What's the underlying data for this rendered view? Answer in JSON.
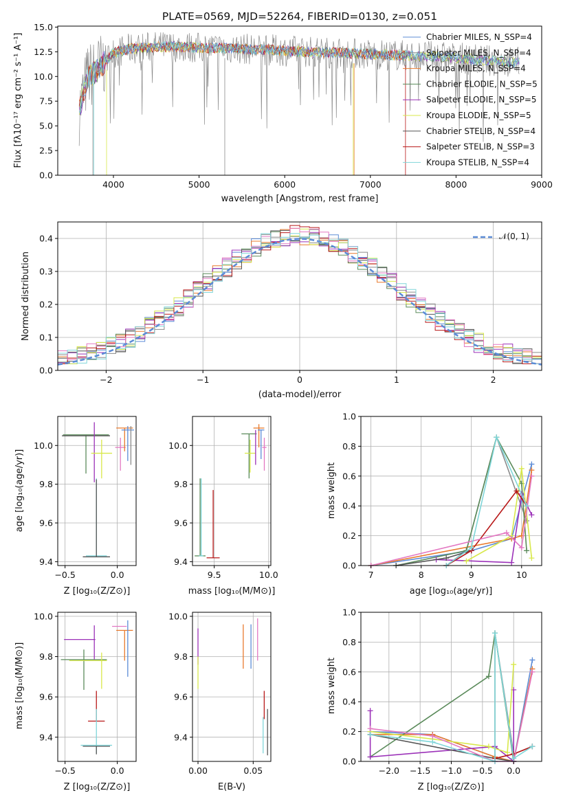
{
  "chart_data": [
    {
      "type": "line",
      "title": "PLATE=0569, MJD=52264, FIBERID=0130, z=0.051",
      "xlabel": "wavelength [Angstrom, rest frame]",
      "ylabel": "Flux [fλ10⁻¹⁷ erg cm⁻² s⁻¹ A⁻¹]",
      "xlim": [
        3350,
        9000
      ],
      "ylim": [
        0,
        15.1
      ],
      "xticks": [
        "4000",
        "5000",
        "6000",
        "7000",
        "8000",
        "9000"
      ],
      "yticks": [
        "0.0",
        "2.5",
        "5.0",
        "7.5",
        "10.0",
        "12.5",
        "15.0"
      ],
      "legend_position": "top-right",
      "series": [
        {
          "name": "Chabrier MILES, N_SSP=4",
          "color": "#5b8bd6"
        },
        {
          "name": "Salpeter MILES, N_SSP=4",
          "color": "#8a8a8a"
        },
        {
          "name": "Kroupa MILES, N_SSP=4",
          "color": "#e8792b"
        },
        {
          "name": "Chabrier ELODIE, N_SSP=5",
          "color": "#5a8a5a"
        },
        {
          "name": "Salpeter ELODIE, N_SSP=5",
          "color": "#9b30b8"
        },
        {
          "name": "Kroupa ELODIE, N_SSP=5",
          "color": "#d8e84a"
        },
        {
          "name": "Chabrier STELIB, N_SSP=4",
          "color": "#555555"
        },
        {
          "name": "Salpeter STELIB, N_SSP=3",
          "color": "#b81818"
        },
        {
          "name": "Kroupa STELIB, N_SSP=4",
          "color": "#7fd6d9"
        }
      ],
      "continuum": {
        "x": [
          3600,
          3700,
          3800,
          3900,
          4000,
          4200,
          4500,
          4800,
          5000,
          5200,
          5500,
          5800,
          6000,
          6300,
          6600,
          6900,
          7200,
          7500,
          7800,
          8100,
          8400,
          8750
        ],
        "y": [
          6.5,
          10.0,
          10.5,
          11.5,
          12.4,
          12.8,
          13.0,
          13.0,
          12.9,
          12.9,
          12.8,
          12.7,
          12.6,
          12.5,
          12.4,
          12.3,
          12.2,
          12.1,
          12.0,
          11.8,
          11.6,
          11.4
        ]
      }
    },
    {
      "type": "line",
      "xlabel": "(data-model)/error",
      "ylabel": "Normed distribution",
      "xlim": [
        -2.5,
        2.5
      ],
      "ylim": [
        0,
        0.45
      ],
      "xticks": [
        "−2",
        "−1",
        "0",
        "1",
        "2"
      ],
      "yticks": [
        "0.0",
        "0.1",
        "0.2",
        "0.3",
        "0.4"
      ],
      "legend": "𝒩(0, 1)",
      "gaussian": {
        "mu": 0,
        "sigma": 1,
        "color": "#5b8bd6"
      }
    },
    {
      "type": "scatter",
      "xlabel": "Z [log₁₀(Z/Z⊙)]",
      "ylabel": "age  [log₁₀(age/yr)]",
      "xlim": [
        -0.57,
        0.18
      ],
      "ylim": [
        9.38,
        10.15
      ],
      "xticks": [
        "−0.5",
        "0.0"
      ],
      "yticks": [
        "9.4",
        "9.6",
        "9.8",
        "10.0"
      ],
      "points": [
        {
          "x": -0.3,
          "y": 10.055,
          "xerr": 0.22,
          "yerr": [
            0.2,
            0.0
          ],
          "color": "#5a8a5a"
        },
        {
          "x": -0.3,
          "y": 10.05,
          "xerr": 0.23,
          "yerr": [
            0.0,
            0.0
          ],
          "color": "#555555"
        },
        {
          "x": -0.22,
          "y": 10.06,
          "xerr": 0.0,
          "yerr": [
            0.25,
            0.06
          ],
          "color": "#9b30b8"
        },
        {
          "x": -0.15,
          "y": 9.96,
          "xerr": 0.1,
          "yerr": [
            0.13,
            0.07
          ],
          "color": "#d8e84a"
        },
        {
          "x": 0.03,
          "y": 9.99,
          "xerr": 0.05,
          "yerr": [
            0.12,
            0.05
          ],
          "color": "#e377c2"
        },
        {
          "x": 0.07,
          "y": 10.09,
          "xerr": 0.08,
          "yerr": [
            0.12,
            0.0
          ],
          "color": "#e8792b"
        },
        {
          "x": 0.1,
          "y": 10.08,
          "xerr": 0.06,
          "yerr": [
            0.16,
            0.02
          ],
          "color": "#5b8bd6"
        },
        {
          "x": 0.13,
          "y": 10.1,
          "xerr": 0.0,
          "yerr": [
            0.2,
            0.0
          ],
          "color": "#8a8a8a"
        },
        {
          "x": -0.2,
          "y": 9.43,
          "xerr": 0.1,
          "yerr": [
            0.0,
            0.4
          ],
          "color": "#7fd6d9"
        },
        {
          "x": -0.2,
          "y": 9.425,
          "xerr": 0.13,
          "yerr": [
            0.0,
            0.4
          ],
          "color": "#555555"
        }
      ]
    },
    {
      "type": "scatter",
      "xlabel": "mass [log₁₀(M/M⊙)]",
      "xlim": [
        9.3,
        10.02
      ],
      "ylim": [
        9.38,
        10.15
      ],
      "xticks": [
        "9.5",
        "10.0"
      ],
      "yticks": [
        "9.4",
        "9.6",
        "9.8",
        "10.0"
      ],
      "points": [
        {
          "x": 9.37,
          "y": 9.43,
          "xerr": 0.05,
          "yerr": [
            0.0,
            0.4
          ],
          "color": "#5a8a5a"
        },
        {
          "x": 9.38,
          "y": 9.43,
          "xerr": 0.02,
          "yerr": [
            0.0,
            0.4
          ],
          "color": "#7fd6d9"
        },
        {
          "x": 9.49,
          "y": 9.42,
          "xerr": 0.06,
          "yerr": [
            0.0,
            0.35
          ],
          "color": "#b81818"
        },
        {
          "x": 9.82,
          "y": 10.06,
          "xerr": 0.07,
          "yerr": [
            0.23,
            0.0
          ],
          "color": "#5a8a5a"
        },
        {
          "x": 9.83,
          "y": 9.96,
          "xerr": 0.05,
          "yerr": [
            0.1,
            0.07
          ],
          "color": "#d8e84a"
        },
        {
          "x": 9.91,
          "y": 10.09,
          "xerr": 0.05,
          "yerr": [
            0.1,
            0.02
          ],
          "color": "#e8792b"
        },
        {
          "x": 9.93,
          "y": 10.08,
          "xerr": 0.03,
          "yerr": [
            0.15,
            0.0
          ],
          "color": "#5b8bd6"
        },
        {
          "x": 9.88,
          "y": 10.0,
          "xerr": 0.0,
          "yerr": [
            0.1,
            0.08
          ],
          "color": "#9b30b8"
        },
        {
          "x": 9.96,
          "y": 9.99,
          "xerr": 0.02,
          "yerr": [
            0.12,
            0.05
          ],
          "color": "#e377c2"
        }
      ]
    },
    {
      "type": "line",
      "xlabel": "age  [log₁₀(age/yr)]",
      "ylabel": "mass weight",
      "xlim": [
        6.8,
        10.4
      ],
      "ylim": [
        0,
        1.0
      ],
      "xticks": [
        "7",
        "8",
        "9",
        "10"
      ],
      "yticks": [
        "0.0",
        "0.2",
        "0.4",
        "0.6",
        "0.8",
        "1.0"
      ],
      "series": [
        {
          "color": "#5b8bd6",
          "x": [
            7.0,
            9.0,
            9.8,
            10.2
          ],
          "y": [
            0.0,
            0.1,
            0.18,
            0.68
          ]
        },
        {
          "color": "#8a8a8a",
          "x": [
            8.5,
            8.9,
            9.5,
            10.1
          ],
          "y": [
            0.0,
            0.1,
            0.86,
            0.3
          ]
        },
        {
          "color": "#e8792b",
          "x": [
            7.0,
            9.8,
            10.0,
            10.2
          ],
          "y": [
            0.0,
            0.18,
            0.2,
            0.64
          ]
        },
        {
          "color": "#5a8a5a",
          "x": [
            7.5,
            8.9,
            9.5,
            10.0,
            10.1
          ],
          "y": [
            0.0,
            0.1,
            0.86,
            0.55,
            0.1
          ]
        },
        {
          "color": "#9b30b8",
          "x": [
            8.3,
            9.8,
            10.0,
            10.2
          ],
          "y": [
            0.04,
            0.02,
            0.48,
            0.34
          ]
        },
        {
          "color": "#d8e84a",
          "x": [
            8.9,
            9.8,
            10.0,
            10.2
          ],
          "y": [
            0.03,
            0.2,
            0.65,
            0.05
          ]
        },
        {
          "color": "#555555",
          "x": [
            7.5,
            8.5,
            9.0
          ],
          "y": [
            0.0,
            0.05,
            0.1
          ]
        },
        {
          "color": "#b81818",
          "x": [
            8.5,
            9.0,
            9.9,
            10.1
          ],
          "y": [
            0.0,
            0.1,
            0.5,
            0.4
          ]
        },
        {
          "color": "#e377c2",
          "x": [
            7.0,
            9.7,
            10.0,
            10.2
          ],
          "y": [
            0.0,
            0.22,
            0.12,
            0.6
          ]
        },
        {
          "color": "#7fd6d9",
          "x": [
            8.5,
            9.0,
            9.5,
            10.1
          ],
          "y": [
            0.0,
            0.12,
            0.86,
            0.4
          ]
        }
      ]
    },
    {
      "type": "scatter",
      "xlabel": "Z [log₁₀(Z/Z⊙)]",
      "ylabel": "mass [log₁₀(M/M⊙)]",
      "xlim": [
        -0.57,
        0.18
      ],
      "ylim": [
        9.28,
        10.02
      ],
      "xticks": [
        "−0.5",
        "0.0"
      ],
      "yticks": [
        "9.4",
        "9.6",
        "9.8",
        "10.0"
      ],
      "points": [
        {
          "x": -0.36,
          "y": 9.885,
          "xerr": 0.15,
          "yerr": [
            0.0,
            0.0
          ],
          "color": "#9b30b8"
        },
        {
          "x": -0.22,
          "y": 9.885,
          "xerr": 0.0,
          "yerr": [
            0.1,
            0.07
          ],
          "color": "#9b30b8"
        },
        {
          "x": -0.32,
          "y": 9.785,
          "xerr": 0.22,
          "yerr": [
            0.15,
            0.05
          ],
          "color": "#5a8a5a"
        },
        {
          "x": -0.28,
          "y": 9.78,
          "xerr": 0.18,
          "yerr": [
            0.0,
            0.0
          ],
          "color": "#d8e84a"
        },
        {
          "x": -0.15,
          "y": 9.78,
          "xerr": 0.0,
          "yerr": [
            0.14,
            0.04
          ],
          "color": "#d8e84a"
        },
        {
          "x": 0.02,
          "y": 9.95,
          "xerr": 0.07,
          "yerr": [
            0.0,
            0.0
          ],
          "color": "#e377c2"
        },
        {
          "x": 0.07,
          "y": 9.93,
          "xerr": 0.08,
          "yerr": [
            0.15,
            0.0
          ],
          "color": "#e8792b"
        },
        {
          "x": 0.1,
          "y": 9.92,
          "xerr": 0.0,
          "yerr": [
            0.22,
            0.06
          ],
          "color": "#5b8bd6"
        },
        {
          "x": -0.2,
          "y": 9.48,
          "xerr": 0.08,
          "yerr": [
            0.0,
            0.15
          ],
          "color": "#b81818"
        },
        {
          "x": -0.2,
          "y": 9.36,
          "xerr": 0.15,
          "yerr": [
            0.04,
            0.18
          ],
          "color": "#7fd6d9"
        },
        {
          "x": -0.2,
          "y": 9.355,
          "xerr": 0.13,
          "yerr": [
            0.04,
            0.0
          ],
          "color": "#555555"
        }
      ]
    },
    {
      "type": "scatter",
      "xlabel": "E(B-V)",
      "xlim": [
        -0.005,
        0.066
      ],
      "ylim": [
        9.28,
        10.02
      ],
      "xticks": [
        "0.00",
        "0.05"
      ],
      "yticks": [
        "9.4",
        "9.6",
        "9.8",
        "10.0"
      ],
      "points": [
        {
          "x": 0.0,
          "y": 9.86,
          "yerr": [
            0.1,
            0.08
          ],
          "color": "#9b30b8"
        },
        {
          "x": 0.0,
          "y": 9.72,
          "yerr": [
            0.08,
            0.08
          ],
          "color": "#d8e84a"
        },
        {
          "x": 0.041,
          "y": 9.85,
          "yerr": [
            0.11,
            0.11
          ],
          "color": "#e8792b"
        },
        {
          "x": 0.048,
          "y": 9.84,
          "yerr": [
            0.1,
            0.12
          ],
          "color": "#5b8bd6"
        },
        {
          "x": 0.054,
          "y": 9.88,
          "yerr": [
            0.1,
            0.11
          ],
          "color": "#e377c2"
        },
        {
          "x": 0.06,
          "y": 9.56,
          "yerr": [
            0.07,
            0.07
          ],
          "color": "#b81818"
        },
        {
          "x": 0.059,
          "y": 9.42,
          "yerr": [
            0.1,
            0.08
          ],
          "color": "#7fd6d9"
        },
        {
          "x": 0.063,
          "y": 9.43,
          "yerr": [
            0.12,
            0.11
          ],
          "color": "#555555"
        }
      ]
    },
    {
      "type": "line",
      "xlabel": "Z [log₁₀(Z/Z⊙)]",
      "ylabel": "mass weight",
      "xlim": [
        -2.45,
        0.45
      ],
      "ylim": [
        0,
        1.0
      ],
      "xticks": [
        "−2.0",
        "−1.5",
        "−1.0",
        "−0.5",
        "0.0"
      ],
      "yticks": [
        "0.0",
        "0.2",
        "0.4",
        "0.6",
        "0.8",
        "1.0"
      ],
      "series": [
        {
          "color": "#5b8bd6",
          "x": [
            -2.3,
            -1.3,
            -0.3,
            0.0,
            0.3
          ],
          "y": [
            0.2,
            0.18,
            0.03,
            0.0,
            0.68
          ]
        },
        {
          "color": "#8a8a8a",
          "x": [
            -0.3,
            -0.3,
            0.0,
            0.3
          ],
          "y": [
            0.0,
            0.86,
            0.05,
            0.1
          ]
        },
        {
          "color": "#e8792b",
          "x": [
            -2.3,
            -1.3,
            -0.3,
            0.0,
            0.3
          ],
          "y": [
            0.18,
            0.18,
            0.03,
            0.0,
            0.62
          ]
        },
        {
          "color": "#5a8a5a",
          "x": [
            -2.3,
            -0.4,
            -0.3,
            0.0
          ],
          "y": [
            0.03,
            0.57,
            0.86,
            0.0
          ]
        },
        {
          "color": "#9b30b8",
          "x": [
            -2.3,
            -2.3,
            -0.3,
            0.0,
            0.0
          ],
          "y": [
            0.34,
            0.03,
            0.1,
            0.0,
            0.48
          ]
        },
        {
          "color": "#d8e84a",
          "x": [
            -2.3,
            -1.3,
            -0.4,
            -0.1,
            0.0
          ],
          "y": [
            0.2,
            0.15,
            0.1,
            0.06,
            0.65
          ]
        },
        {
          "color": "#555555",
          "x": [
            -2.3,
            -0.3,
            0.0
          ],
          "y": [
            0.18,
            0.02,
            0.0
          ]
        },
        {
          "color": "#b81818",
          "x": [
            -0.3,
            0.0,
            0.3
          ],
          "y": [
            0.02,
            0.05,
            0.1
          ]
        },
        {
          "color": "#e377c2",
          "x": [
            -2.3,
            -1.3,
            -0.3,
            0.0,
            0.3
          ],
          "y": [
            0.22,
            0.17,
            0.0,
            0.0,
            0.6
          ]
        },
        {
          "color": "#7fd6d9",
          "x": [
            -2.3,
            -1.3,
            -0.3,
            -0.3,
            0.0,
            0.3
          ],
          "y": [
            0.18,
            0.13,
            0.0,
            0.86,
            0.02,
            0.1
          ]
        }
      ]
    }
  ]
}
